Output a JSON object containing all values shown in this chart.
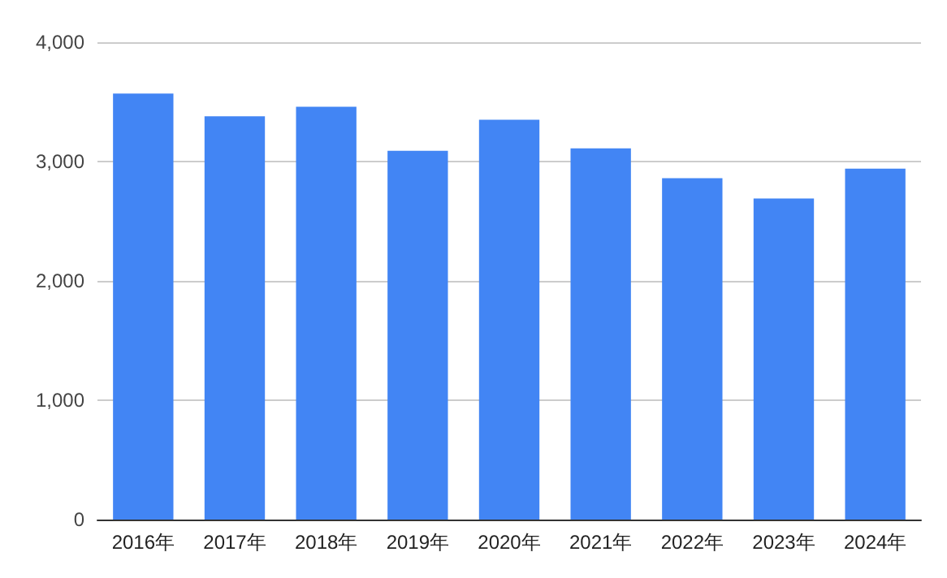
{
  "chart_data": {
    "type": "bar",
    "categories": [
      "2016年",
      "2017年",
      "2018年",
      "2019年",
      "2020年",
      "2021年",
      "2022年",
      "2023年",
      "2024年"
    ],
    "values": [
      3570,
      3380,
      3460,
      3090,
      3350,
      3110,
      2860,
      2690,
      2940
    ],
    "color": "#4285f4",
    "ylim": [
      0,
      4000
    ],
    "yticks": [
      0,
      {
        "value": 1000,
        "label": "1,000"
      },
      {
        "value": 2000,
        "label": "2,000"
      },
      {
        "value": 3000,
        "label": "3,000"
      },
      {
        "value": 4000,
        "label": "4,000"
      }
    ],
    "grid": "y"
  }
}
